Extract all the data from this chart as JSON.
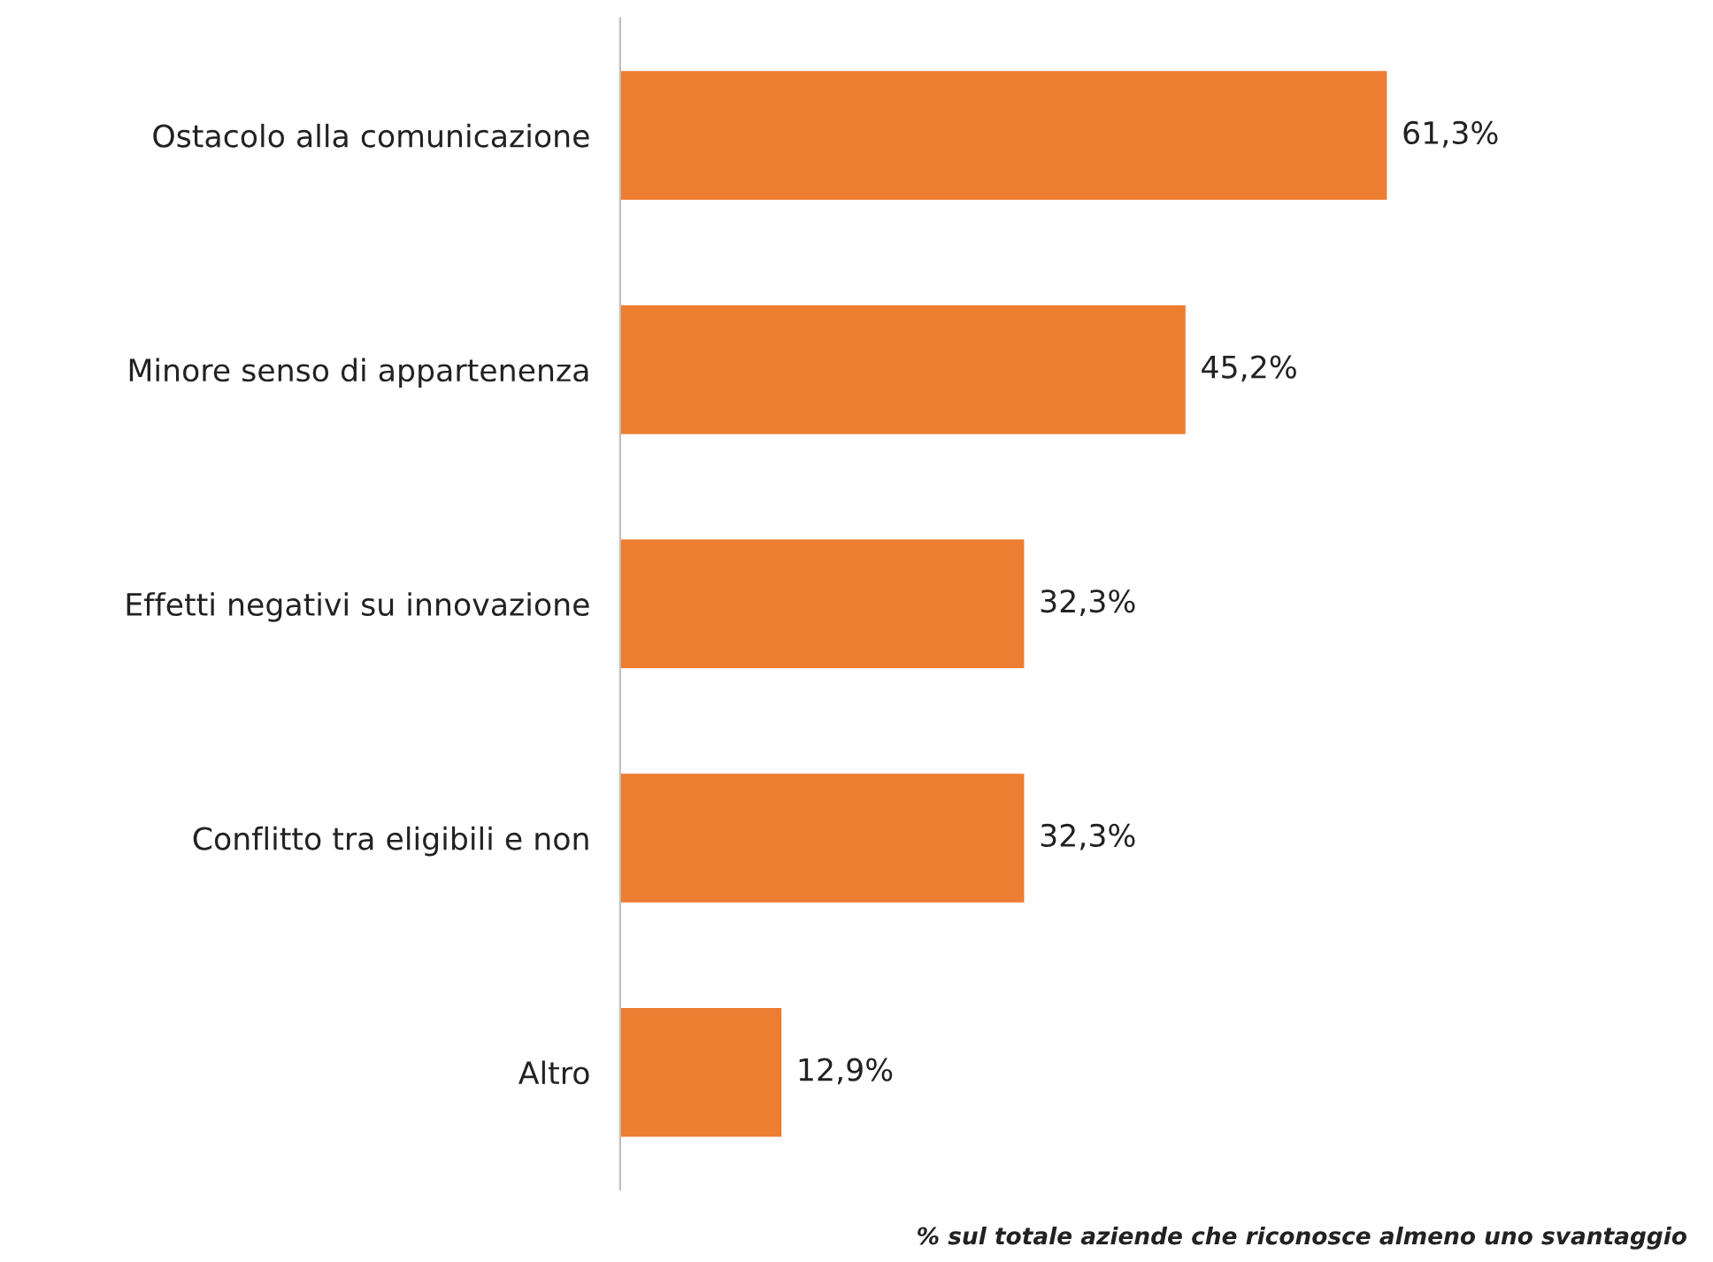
{
  "chart_data": {
    "type": "bar",
    "orientation": "horizontal",
    "categories": [
      "Ostacolo alla comunicazione",
      "Minore senso di appartenenza",
      "Effetti negativi su innovazione",
      "Conflitto tra eligibili e non",
      "Altro"
    ],
    "values": [
      61.3,
      45.2,
      32.3,
      32.3,
      12.9
    ],
    "value_labels": [
      "61,3%",
      "45,2%",
      "32,3%",
      "32,3%",
      "12,9%"
    ],
    "color": "#ed7d31",
    "tick_labels": "y",
    "grid": false,
    "legend": false,
    "annotations": [
      "% sul totale aziende che riconosce almeno uno svantaggio"
    ]
  }
}
